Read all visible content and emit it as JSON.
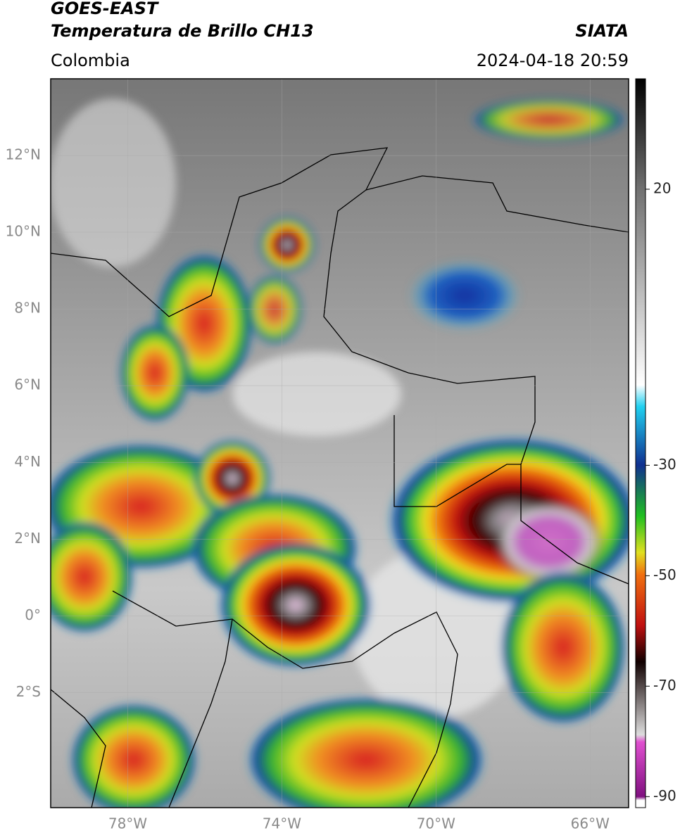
{
  "header": {
    "product": "GOES-EAST",
    "channel": "Temperatura de Brillo CH13",
    "source": "SIATA",
    "region": "Colombia",
    "timestamp": "2024-04-18 20:59"
  },
  "map": {
    "lon_range": [
      -80,
      -65
    ],
    "lat_range": [
      -5,
      14
    ],
    "lat_ticks": [
      {
        "value": 12,
        "label": "12°N"
      },
      {
        "value": 10,
        "label": "10°N"
      },
      {
        "value": 8,
        "label": "8°N"
      },
      {
        "value": 6,
        "label": "6°N"
      },
      {
        "value": 4,
        "label": "4°N"
      },
      {
        "value": 2,
        "label": "2°N"
      },
      {
        "value": 0,
        "label": "0°"
      },
      {
        "value": -2,
        "label": "2°S"
      }
    ],
    "lon_ticks": [
      {
        "value": -78,
        "label": "78°W"
      },
      {
        "value": -74,
        "label": "74°W"
      },
      {
        "value": -70,
        "label": "70°W"
      },
      {
        "value": -66,
        "label": "66°W"
      }
    ]
  },
  "colorbar": {
    "range": [
      -92,
      40
    ],
    "ticks": [
      20,
      -30,
      -50,
      -70,
      -90
    ]
  }
}
